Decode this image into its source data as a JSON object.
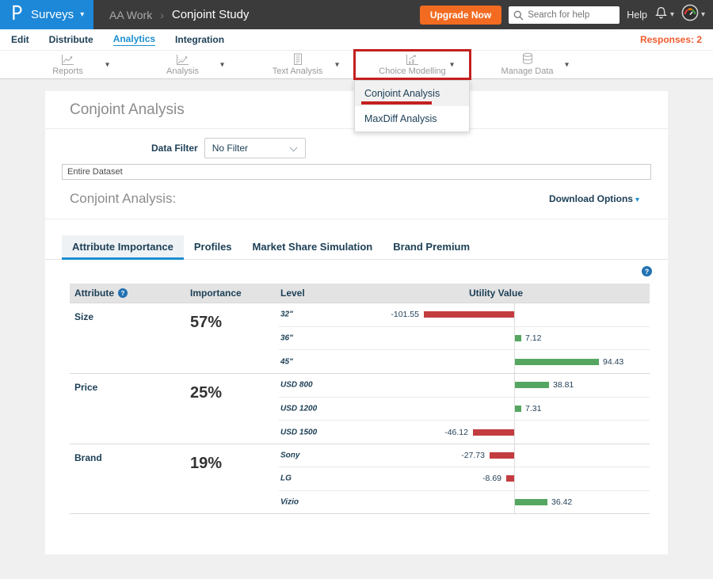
{
  "colors": {
    "brand_blue": "#1d87d8",
    "topbar_dark": "#3b3b3b",
    "upgrade_orange": "#f26b21",
    "navy_text": "#1d4057",
    "link_blue": "#1d8fd1",
    "responses_orange": "#ef5b2d",
    "bar_positive_green": "#55a661",
    "bar_negative_red": "#c33c3f",
    "annotation_red": "#c41f1f",
    "muted_title_gray": "#8c8c8c"
  },
  "topbar": {
    "logo": "P",
    "product": "Surveys",
    "breadcrumb": {
      "workspace": "AA Work",
      "separator": "›",
      "current": "Conjoint Study"
    },
    "upgrade_label": "Upgrade Now",
    "search_placeholder": "Search for help",
    "help_label": "Help"
  },
  "nav": {
    "items": [
      {
        "label": "Edit",
        "active": false
      },
      {
        "label": "Distribute",
        "active": false
      },
      {
        "label": "Analytics",
        "active": true
      },
      {
        "label": "Integration",
        "active": false
      }
    ],
    "responses_label": "Responses: 2"
  },
  "toolbar": {
    "groups": [
      {
        "label": "Reports",
        "icon": "line-chart",
        "highlighted": false
      },
      {
        "label": "Analysis",
        "icon": "trend-chart",
        "highlighted": false
      },
      {
        "label": "Text Analysis",
        "icon": "document-text",
        "highlighted": false
      },
      {
        "label": "Choice Modelling",
        "icon": "choice-chart",
        "highlighted": true
      },
      {
        "label": "Manage Data",
        "icon": "database",
        "highlighted": false
      }
    ]
  },
  "choice_dropdown": {
    "items": [
      {
        "label": "Conjoint Analysis",
        "selected": true,
        "annotated": true
      },
      {
        "label": "MaxDiff Analysis",
        "selected": false,
        "annotated": false
      }
    ]
  },
  "content": {
    "page_title": "Conjoint Analysis",
    "data_filter_label": "Data Filter",
    "filter_value": "No Filter",
    "dataset_value": "Entire Dataset",
    "section_title": "Conjoint Analysis:",
    "download_label": "Download Options",
    "tabs": [
      {
        "label": "Attribute Importance",
        "active": true
      },
      {
        "label": "Profiles",
        "active": false
      },
      {
        "label": "Market Share Simulation",
        "active": false
      },
      {
        "label": "Brand Premium",
        "active": false
      }
    ]
  },
  "table": {
    "headers": {
      "attribute": "Attribute",
      "importance": "Importance",
      "level": "Level",
      "utility": "Utility Value"
    },
    "groups": [
      {
        "attribute": "Size",
        "importance": "57%",
        "levels": [
          {
            "label": "32\"",
            "value": -101.55
          },
          {
            "label": "36\"",
            "value": 7.12
          },
          {
            "label": "45\"",
            "value": 94.43
          }
        ]
      },
      {
        "attribute": "Price",
        "importance": "25%",
        "levels": [
          {
            "label": "USD 800",
            "value": 38.81
          },
          {
            "label": "USD 1200",
            "value": 7.31
          },
          {
            "label": "USD 1500",
            "value": -46.12
          }
        ]
      },
      {
        "attribute": "Brand",
        "importance": "19%",
        "levels": [
          {
            "label": "Sony",
            "value": -27.73
          },
          {
            "label": "LG",
            "value": -8.69
          },
          {
            "label": "Vizio",
            "value": 36.42
          }
        ]
      }
    ]
  },
  "chart_data": {
    "type": "bar",
    "orientation": "horizontal",
    "title": "Conjoint Analysis — Attribute Importance & Utility Values",
    "xlabel": "Utility Value",
    "axis_zero_centered": true,
    "series": [
      {
        "name": "Size",
        "importance_pct": 57,
        "categories": [
          "32\"",
          "36\"",
          "45\""
        ],
        "values": [
          -101.55,
          7.12,
          94.43
        ]
      },
      {
        "name": "Price",
        "importance_pct": 25,
        "categories": [
          "USD 800",
          "USD 1200",
          "USD 1500"
        ],
        "values": [
          38.81,
          7.31,
          -46.12
        ]
      },
      {
        "name": "Brand",
        "importance_pct": 19,
        "categories": [
          "Sony",
          "LG",
          "Vizio"
        ],
        "values": [
          -27.73,
          -8.69,
          36.42
        ]
      }
    ],
    "positive_color": "#55a661",
    "negative_color": "#c33c3f"
  }
}
